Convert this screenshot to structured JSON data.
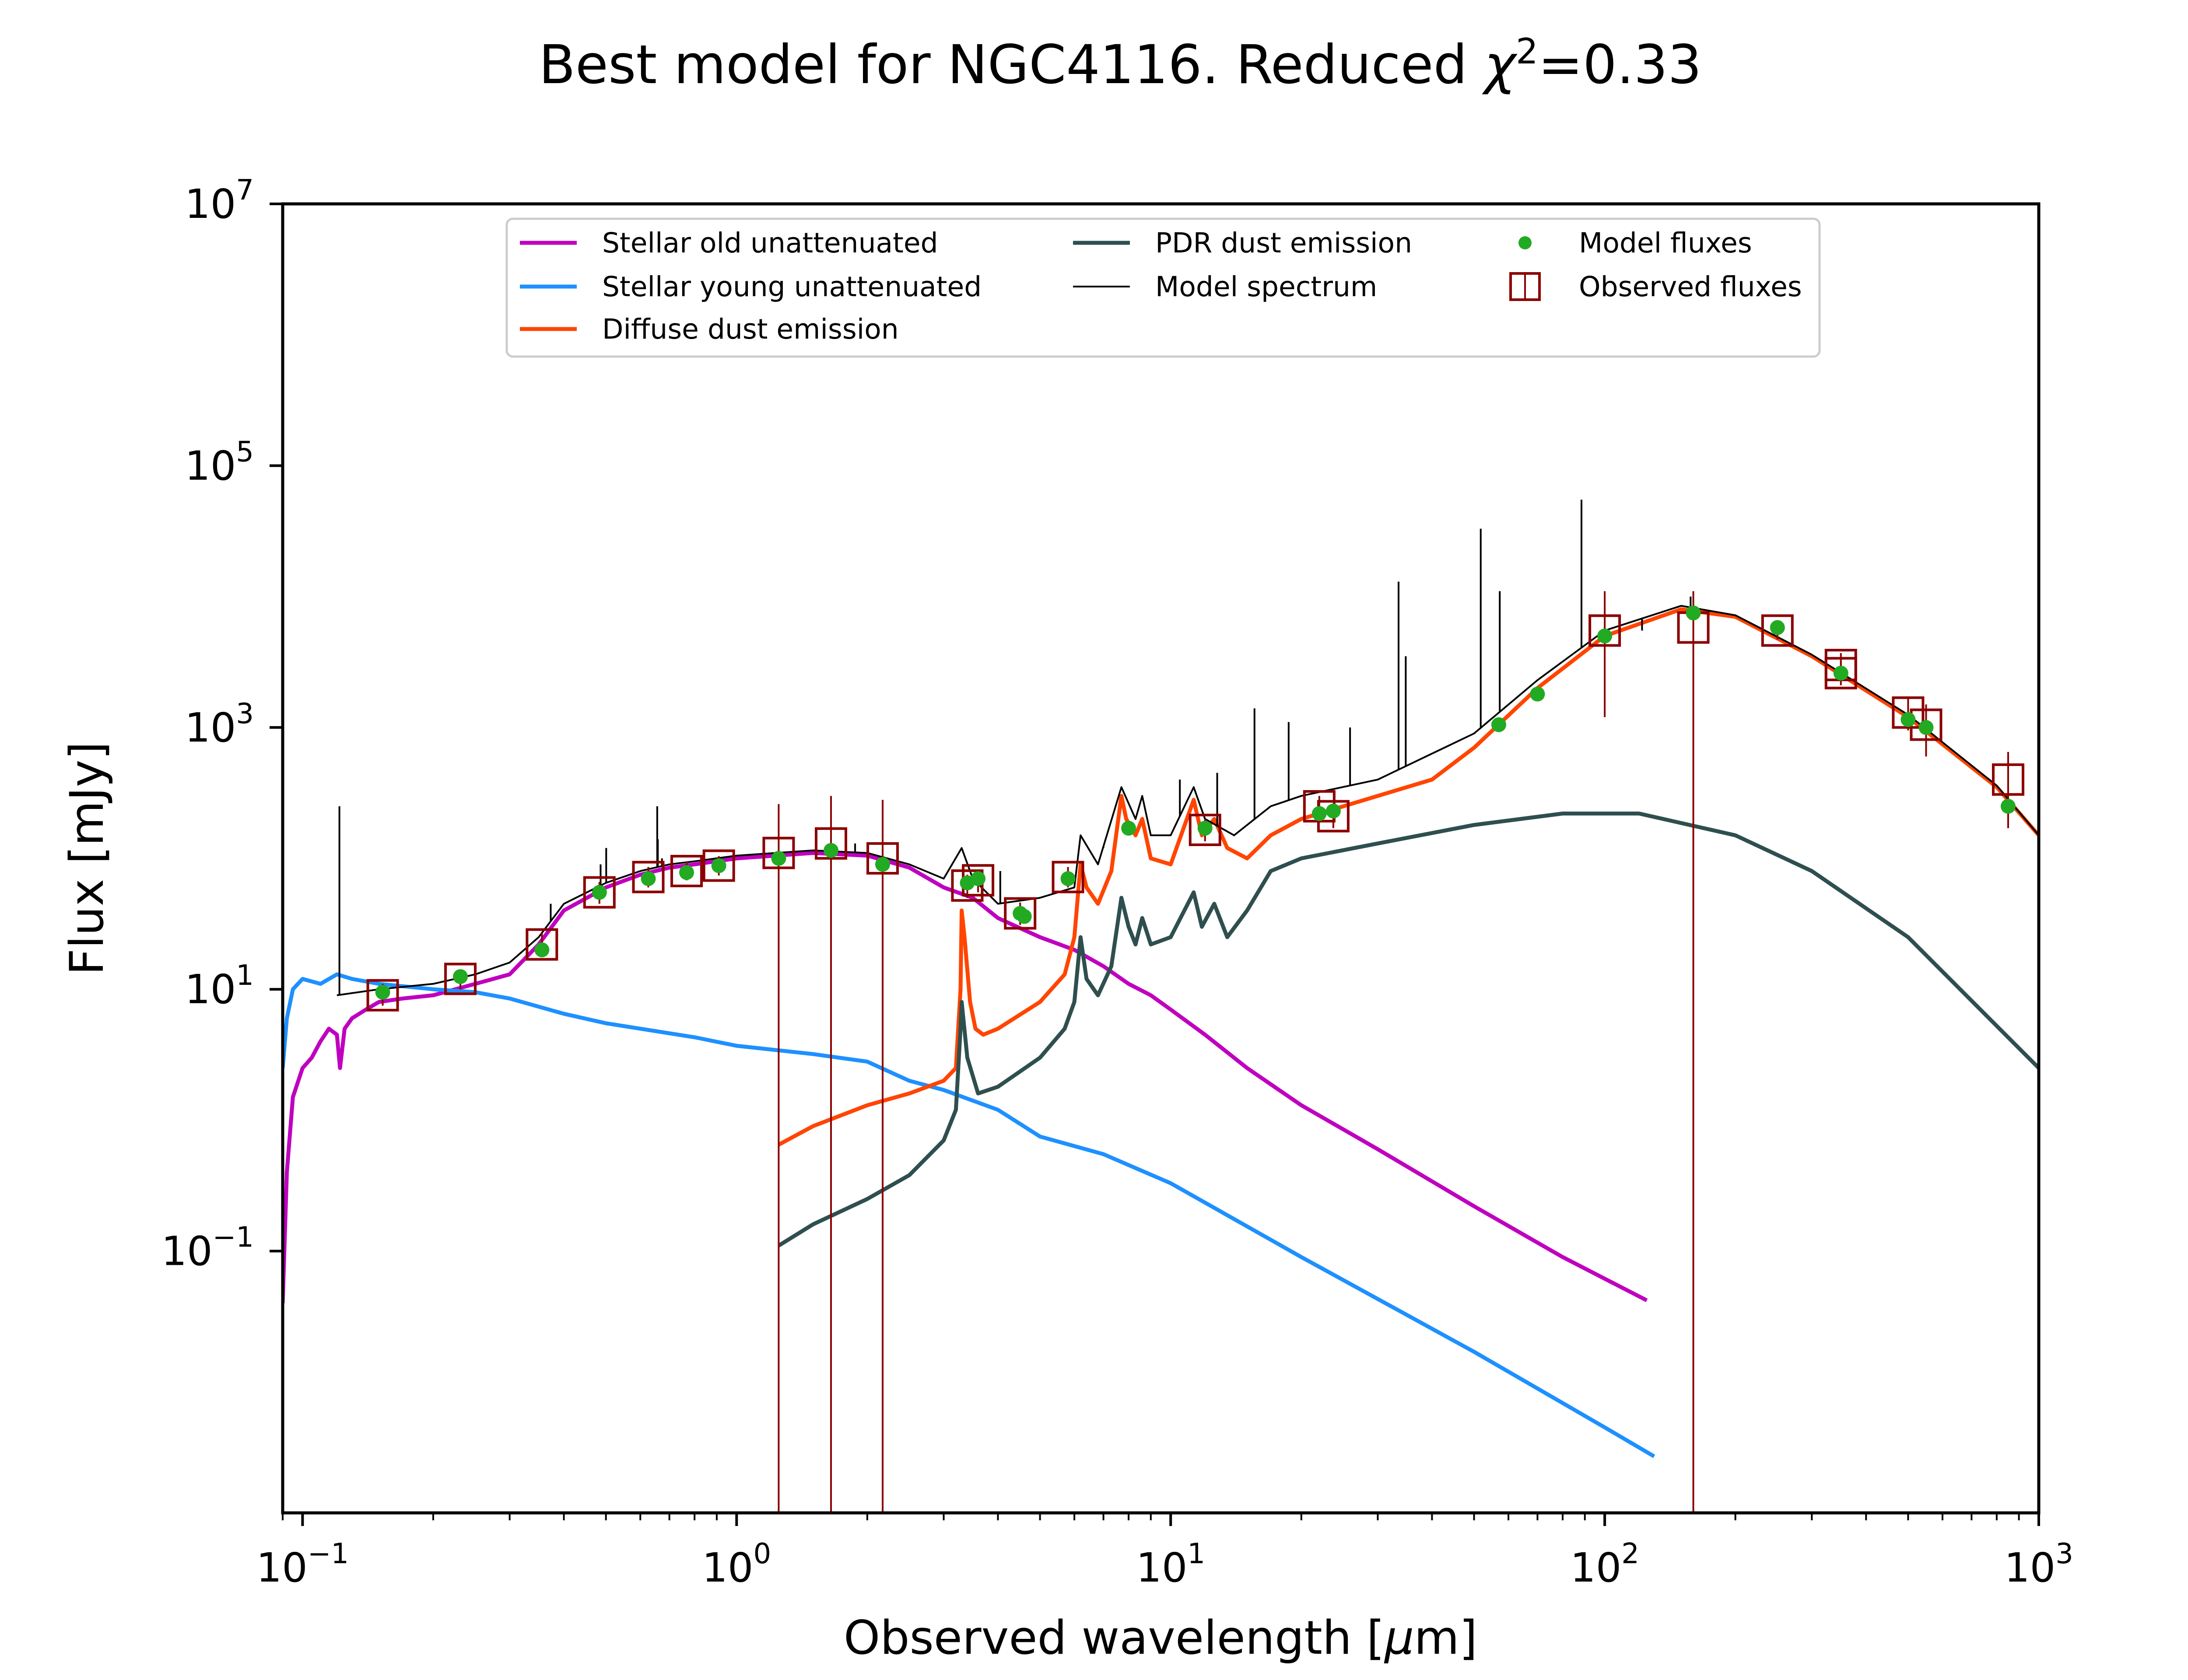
{
  "chart_data": {
    "type": "line",
    "title": "Best model for NGC4116. Reduced χ²=0.33",
    "title_parts": {
      "prefix": "Best model for NGC4116. Reduced ",
      "chi": "χ",
      "sup": "2",
      "suffix": "=0.33"
    },
    "xlabel_parts": {
      "prefix": "Observed wavelength [",
      "mu": "μ",
      "suffix": "m]"
    },
    "ylabel": "Flux [mJy]",
    "x_scale": "log",
    "y_scale": "log",
    "xlim": [
      0.09,
      1000
    ],
    "ylim": [
      0.001,
      10000000
    ],
    "x_ticks": [
      {
        "base": "10",
        "exp": "−1",
        "value": 0.1
      },
      {
        "base": "10",
        "exp": "0",
        "value": 1
      },
      {
        "base": "10",
        "exp": "1",
        "value": 10
      },
      {
        "base": "10",
        "exp": "2",
        "value": 100
      },
      {
        "base": "10",
        "exp": "3",
        "value": 1000
      }
    ],
    "y_ticks": [
      {
        "base": "10",
        "exp": "−1",
        "value": 0.1
      },
      {
        "base": "10",
        "exp": "1",
        "value": 10
      },
      {
        "base": "10",
        "exp": "3",
        "value": 1000
      },
      {
        "base": "10",
        "exp": "5",
        "value": 100000
      },
      {
        "base": "10",
        "exp": "7",
        "value": 10000000
      }
    ],
    "grid": false,
    "legend_placement": "top-center",
    "legend": [
      {
        "key": "old",
        "label": "Stellar old unattenuated",
        "marker": "line"
      },
      {
        "key": "young",
        "label": "Stellar young unattenuated",
        "marker": "line"
      },
      {
        "key": "diffuse",
        "label": "Diffuse dust emission",
        "marker": "line"
      },
      {
        "key": "pdr",
        "label": "PDR dust emission",
        "marker": "line"
      },
      {
        "key": "model",
        "label": "Model spectrum",
        "marker": "thin-line"
      },
      {
        "key": "modelflux",
        "label": "Model fluxes",
        "marker": "dot"
      },
      {
        "key": "obsflux",
        "label": "Observed fluxes",
        "marker": "square-errorbar"
      }
    ],
    "colors": {
      "old": "#bf00bf",
      "young": "#1e90ff",
      "diffuse": "#ff4500",
      "pdr": "#2f4f4f",
      "model": "#000000",
      "modelflux": "#22aa22",
      "obsflux": "#8b0000"
    },
    "series": [
      {
        "key": "old",
        "name": "Stellar old unattenuated",
        "points": [
          [
            0.09,
            0.04
          ],
          [
            0.092,
            0.4
          ],
          [
            0.095,
            1.5
          ],
          [
            0.1,
            2.5
          ],
          [
            0.105,
            3.0
          ],
          [
            0.11,
            4.0
          ],
          [
            0.115,
            5.0
          ],
          [
            0.12,
            4.5
          ],
          [
            0.122,
            2.5
          ],
          [
            0.125,
            5.0
          ],
          [
            0.13,
            6.0
          ],
          [
            0.14,
            7.0
          ],
          [
            0.15,
            8.0
          ],
          [
            0.17,
            8.5
          ],
          [
            0.2,
            9.0
          ],
          [
            0.25,
            11.0
          ],
          [
            0.3,
            13.0
          ],
          [
            0.35,
            22.0
          ],
          [
            0.4,
            40.0
          ],
          [
            0.5,
            60.0
          ],
          [
            0.6,
            75.0
          ],
          [
            0.7,
            85.0
          ],
          [
            0.8,
            90.0
          ],
          [
            1.0,
            100.0
          ],
          [
            1.5,
            110.0
          ],
          [
            2.0,
            105.0
          ],
          [
            2.5,
            85.0
          ],
          [
            3.0,
            60.0
          ],
          [
            3.5,
            50.0
          ],
          [
            4.0,
            35.0
          ],
          [
            5.0,
            25.0
          ],
          [
            6.0,
            20.0
          ],
          [
            7.0,
            15.0
          ],
          [
            8.0,
            11.0
          ],
          [
            9.0,
            9.0
          ],
          [
            10.0,
            7.0
          ],
          [
            12.0,
            4.5
          ],
          [
            15.0,
            2.5
          ],
          [
            20.0,
            1.3
          ],
          [
            30.0,
            0.6
          ],
          [
            50.0,
            0.22
          ],
          [
            80.0,
            0.09
          ],
          [
            125.0,
            0.042
          ]
        ]
      },
      {
        "key": "young",
        "name": "Stellar young unattenuated",
        "points": [
          [
            0.09,
            2.5
          ],
          [
            0.092,
            6.0
          ],
          [
            0.095,
            10.0
          ],
          [
            0.1,
            12.0
          ],
          [
            0.11,
            11.0
          ],
          [
            0.12,
            13.0
          ],
          [
            0.13,
            12.0
          ],
          [
            0.15,
            11.0
          ],
          [
            0.2,
            10.0
          ],
          [
            0.25,
            9.5
          ],
          [
            0.3,
            8.5
          ],
          [
            0.4,
            6.5
          ],
          [
            0.5,
            5.5
          ],
          [
            0.6,
            5.0
          ],
          [
            0.8,
            4.3
          ],
          [
            1.0,
            3.7
          ],
          [
            1.5,
            3.2
          ],
          [
            2.0,
            2.8
          ],
          [
            2.5,
            2.0
          ],
          [
            3.0,
            1.7
          ],
          [
            4.0,
            1.2
          ],
          [
            5.0,
            0.75
          ],
          [
            7.0,
            0.55
          ],
          [
            10.0,
            0.33
          ],
          [
            20.0,
            0.09
          ],
          [
            50.0,
            0.017
          ],
          [
            100.0,
            0.0045
          ],
          [
            130.0,
            0.0027
          ]
        ]
      },
      {
        "key": "diffuse",
        "name": "Diffuse dust emission",
        "points": [
          [
            1.25,
            0.65
          ],
          [
            1.5,
            0.9
          ],
          [
            2.0,
            1.3
          ],
          [
            2.5,
            1.6
          ],
          [
            3.0,
            2.0
          ],
          [
            3.2,
            2.5
          ],
          [
            3.28,
            10.0
          ],
          [
            3.3,
            40.0
          ],
          [
            3.35,
            25.0
          ],
          [
            3.45,
            8.0
          ],
          [
            3.55,
            5.0
          ],
          [
            3.7,
            4.5
          ],
          [
            4.0,
            5.0
          ],
          [
            5.0,
            8.0
          ],
          [
            5.7,
            13.0
          ],
          [
            6.0,
            25.0
          ],
          [
            6.2,
            90.0
          ],
          [
            6.4,
            60.0
          ],
          [
            6.8,
            45.0
          ],
          [
            7.3,
            80.0
          ],
          [
            7.7,
            300.0
          ],
          [
            7.9,
            200.0
          ],
          [
            8.3,
            150.0
          ],
          [
            8.6,
            200.0
          ],
          [
            9.0,
            100.0
          ],
          [
            10.0,
            90.0
          ],
          [
            11.3,
            280.0
          ],
          [
            11.8,
            150.0
          ],
          [
            12.6,
            200.0
          ],
          [
            13.5,
            120.0
          ],
          [
            15.0,
            100.0
          ],
          [
            17.0,
            150.0
          ],
          [
            20.0,
            200.0
          ],
          [
            30.0,
            300.0
          ],
          [
            40.0,
            400.0
          ],
          [
            50.0,
            700.0
          ],
          [
            70.0,
            2000.0
          ],
          [
            100.0,
            5000.0
          ],
          [
            150.0,
            8000.0
          ],
          [
            200.0,
            7000.0
          ],
          [
            300.0,
            3500.0
          ],
          [
            500.0,
            1200.0
          ],
          [
            800.0,
            350.0
          ],
          [
            1000.0,
            150.0
          ]
        ]
      },
      {
        "key": "pdr",
        "name": "PDR dust emission",
        "points": [
          [
            1.25,
            0.11
          ],
          [
            1.5,
            0.16
          ],
          [
            2.0,
            0.25
          ],
          [
            2.5,
            0.38
          ],
          [
            3.0,
            0.7
          ],
          [
            3.2,
            1.2
          ],
          [
            3.28,
            5.0
          ],
          [
            3.3,
            8.0
          ],
          [
            3.4,
            3.0
          ],
          [
            3.6,
            1.6
          ],
          [
            4.0,
            1.8
          ],
          [
            5.0,
            3.0
          ],
          [
            5.7,
            5.0
          ],
          [
            6.0,
            8.0
          ],
          [
            6.2,
            25.0
          ],
          [
            6.4,
            12.0
          ],
          [
            6.8,
            9.0
          ],
          [
            7.3,
            15.0
          ],
          [
            7.7,
            50.0
          ],
          [
            8.0,
            30.0
          ],
          [
            8.3,
            22.0
          ],
          [
            8.6,
            35.0
          ],
          [
            9.0,
            22.0
          ],
          [
            10.0,
            25.0
          ],
          [
            11.3,
            55.0
          ],
          [
            11.8,
            30.0
          ],
          [
            12.6,
            45.0
          ],
          [
            13.5,
            25.0
          ],
          [
            15.0,
            40.0
          ],
          [
            17.0,
            80.0
          ],
          [
            20.0,
            100.0
          ],
          [
            30.0,
            130.0
          ],
          [
            50.0,
            180.0
          ],
          [
            80.0,
            220.0
          ],
          [
            120.0,
            220.0
          ],
          [
            200.0,
            150.0
          ],
          [
            300.0,
            80.0
          ],
          [
            500.0,
            25.0
          ],
          [
            1000.0,
            2.5
          ]
        ]
      },
      {
        "key": "model",
        "name": "Model spectrum",
        "points": [
          [
            0.12,
            9.0
          ],
          [
            0.15,
            10.0
          ],
          [
            0.2,
            11.0
          ],
          [
            0.25,
            13.0
          ],
          [
            0.3,
            16.0
          ],
          [
            0.35,
            25.0
          ],
          [
            0.4,
            45.0
          ],
          [
            0.5,
            65.0
          ],
          [
            0.6,
            80.0
          ],
          [
            0.7,
            90.0
          ],
          [
            0.8,
            95.0
          ],
          [
            1.0,
            105.0
          ],
          [
            1.5,
            115.0
          ],
          [
            2.0,
            110.0
          ],
          [
            2.5,
            90.0
          ],
          [
            3.0,
            70.0
          ],
          [
            3.3,
            120.0
          ],
          [
            3.5,
            70.0
          ],
          [
            4.0,
            45.0
          ],
          [
            5.0,
            50.0
          ],
          [
            6.0,
            60.0
          ],
          [
            6.2,
            150.0
          ],
          [
            6.8,
            90.0
          ],
          [
            7.7,
            350.0
          ],
          [
            8.3,
            200.0
          ],
          [
            8.6,
            300.0
          ],
          [
            9.0,
            150.0
          ],
          [
            10.0,
            150.0
          ],
          [
            11.3,
            350.0
          ],
          [
            12.0,
            200.0
          ],
          [
            14.0,
            150.0
          ],
          [
            17.0,
            250.0
          ],
          [
            20.0,
            300.0
          ],
          [
            30.0,
            400.0
          ],
          [
            50.0,
            900.0
          ],
          [
            70.0,
            2300.0
          ],
          [
            100.0,
            5500.0
          ],
          [
            150.0,
            8500.0
          ],
          [
            200.0,
            7200.0
          ],
          [
            300.0,
            3600.0
          ],
          [
            500.0,
            1250.0
          ],
          [
            800.0,
            360.0
          ],
          [
            1000.0,
            150.0
          ]
        ]
      }
    ],
    "spikes": [
      [
        0.1216,
        250.0
      ],
      [
        0.373,
        45.0
      ],
      [
        0.486,
        90.0
      ],
      [
        0.5007,
        120.0
      ],
      [
        0.6563,
        250.0
      ],
      [
        0.6584,
        140.0
      ],
      [
        0.6731,
        100.0
      ],
      [
        1.875,
        130.0
      ],
      [
        4.05,
        80.0
      ],
      [
        7.0,
        120.0
      ],
      [
        10.5,
        400.0
      ],
      [
        12.8,
        450.0
      ],
      [
        15.6,
        1400.0
      ],
      [
        18.7,
        1100.0
      ],
      [
        25.9,
        1000.0
      ],
      [
        33.5,
        13000.0
      ],
      [
        34.8,
        3500.0
      ],
      [
        51.8,
        33000.0
      ],
      [
        57.3,
        11000.0
      ],
      [
        88.4,
        55000.0
      ],
      [
        121.9,
        5500.0
      ],
      [
        157.7,
        10000.0
      ]
    ],
    "model_fluxes": [
      [
        0.153,
        9.5
      ],
      [
        0.231,
        12.5
      ],
      [
        0.356,
        20.0
      ],
      [
        0.483,
        55.0
      ],
      [
        0.626,
        70.0
      ],
      [
        0.767,
        78.0
      ],
      [
        0.91,
        88.0
      ],
      [
        1.25,
        100.0
      ],
      [
        1.65,
        115.0
      ],
      [
        2.17,
        90.0
      ],
      [
        3.4,
        65.0
      ],
      [
        3.6,
        70.0
      ],
      [
        4.5,
        38.0
      ],
      [
        4.6,
        36.0
      ],
      [
        5.8,
        70.0
      ],
      [
        8.0,
        170.0
      ],
      [
        12.0,
        170.0
      ],
      [
        22.0,
        220.0
      ],
      [
        23.7,
        230.0
      ],
      [
        57.0,
        1050.0
      ],
      [
        70.0,
        1800.0
      ],
      [
        100.0,
        5000.0
      ],
      [
        160.0,
        7500.0
      ],
      [
        250.0,
        5800.0
      ],
      [
        350.0,
        2600.0
      ],
      [
        500.0,
        1150.0
      ],
      [
        550.0,
        1000.0
      ],
      [
        850.0,
        250.0
      ]
    ],
    "observed_fluxes": [
      {
        "x": 0.153,
        "y": 9.0,
        "lo": 7.5,
        "hi": 11.0
      },
      {
        "x": 0.231,
        "y": 12.0,
        "lo": 10.0,
        "hi": 14.0
      },
      {
        "x": 0.356,
        "y": 22.0,
        "lo": 18.0,
        "hi": 27.0
      },
      {
        "x": 0.483,
        "y": 55.0,
        "lo": 45.0,
        "hi": 66.0
      },
      {
        "x": 0.626,
        "y": 72.0,
        "lo": 60.0,
        "hi": 86.0
      },
      {
        "x": 0.767,
        "y": 80.0,
        "lo": 68.0,
        "hi": 94.0
      },
      {
        "x": 0.91,
        "y": 88.0,
        "lo": 74.0,
        "hi": 104.0
      },
      {
        "x": 1.25,
        "y": 110.0,
        "lo": 0.001,
        "hi": 260.0
      },
      {
        "x": 1.65,
        "y": 130.0,
        "lo": 0.001,
        "hi": 300.0
      },
      {
        "x": 2.17,
        "y": 100.0,
        "lo": 0.001,
        "hi": 280.0
      },
      {
        "x": 3.4,
        "y": 62.0,
        "lo": 50.0,
        "hi": 75.0
      },
      {
        "x": 3.6,
        "y": 68.0,
        "lo": 55.0,
        "hi": 82.0
      },
      {
        "x": 4.5,
        "y": 38.0,
        "lo": 31.0,
        "hi": 46.0
      },
      {
        "x": 5.8,
        "y": 72.0,
        "lo": 60.0,
        "hi": 86.0
      },
      {
        "x": 12.0,
        "y": 165.0,
        "lo": 135.0,
        "hi": 200.0
      },
      {
        "x": 22.0,
        "y": 250.0,
        "lo": 205.0,
        "hi": 300.0
      },
      {
        "x": 23.7,
        "y": 210.0,
        "lo": 170.0,
        "hi": 255.0
      },
      {
        "x": 100.0,
        "y": 5500.0,
        "lo": 1200.0,
        "hi": 11000.0
      },
      {
        "x": 160.0,
        "y": 5800.0,
        "lo": 0.001,
        "hi": 11000.0
      },
      {
        "x": 250.0,
        "y": 5500.0,
        "lo": 4700.0,
        "hi": 6400.0
      },
      {
        "x": 350.0,
        "y": 3000.0,
        "lo": 2400.0,
        "hi": 3700.0
      },
      {
        "x": 350.0,
        "y": 2600.0,
        "lo": 2100.0,
        "hi": 3200.0
      },
      {
        "x": 500.0,
        "y": 1300.0,
        "lo": 950.0,
        "hi": 1700.0
      },
      {
        "x": 550.0,
        "y": 1050.0,
        "lo": 600.0,
        "hi": 1500.0
      },
      {
        "x": 850.0,
        "y": 400.0,
        "lo": 170.0,
        "hi": 650.0
      }
    ]
  }
}
